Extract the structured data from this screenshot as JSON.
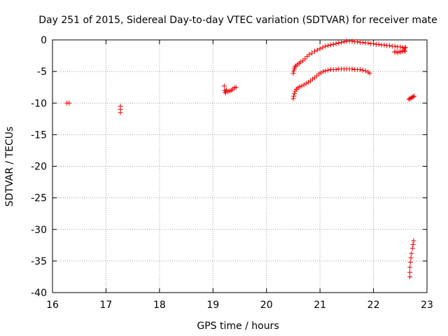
{
  "chart_data": {
    "type": "scatter",
    "title": "Day 251 of 2015, Sidereal Day-to-day VTEC variation (SDTVAR) for receiver mate",
    "xlabel": "GPS time / hours",
    "ylabel": "SDTVAR / TECUs",
    "xlim": [
      16,
      23
    ],
    "ylim": [
      -40,
      0
    ],
    "xticks": [
      16,
      17,
      18,
      19,
      20,
      21,
      22,
      23
    ],
    "yticks": [
      0,
      -5,
      -10,
      -15,
      -20,
      -25,
      -30,
      -35,
      -40
    ],
    "grid": true,
    "marker": "plus",
    "color": "#ee0000",
    "series": [
      {
        "name": "SDTVAR",
        "points": [
          [
            16.27,
            -10.0
          ],
          [
            16.31,
            -10.0
          ],
          [
            17.27,
            -10.5
          ],
          [
            17.27,
            -11.0
          ],
          [
            17.27,
            -11.5
          ],
          [
            19.21,
            -7.3
          ],
          [
            19.22,
            -8.0
          ],
          [
            19.23,
            -8.4
          ],
          [
            19.24,
            -8.2
          ],
          [
            19.25,
            -7.9
          ],
          [
            19.28,
            -8.2
          ],
          [
            19.31,
            -8.1
          ],
          [
            19.34,
            -8.0
          ],
          [
            19.37,
            -7.8
          ],
          [
            19.4,
            -7.6
          ],
          [
            19.43,
            -7.5
          ],
          [
            20.5,
            -5.3
          ],
          [
            20.51,
            -4.9
          ],
          [
            20.52,
            -4.6
          ],
          [
            20.53,
            -4.3
          ],
          [
            20.55,
            -4.1
          ],
          [
            20.58,
            -3.9
          ],
          [
            20.61,
            -3.7
          ],
          [
            20.64,
            -3.5
          ],
          [
            20.68,
            -3.3
          ],
          [
            20.72,
            -3.0
          ],
          [
            20.76,
            -2.6
          ],
          [
            20.8,
            -2.3
          ],
          [
            20.85,
            -2.1
          ],
          [
            20.9,
            -1.8
          ],
          [
            20.95,
            -1.6
          ],
          [
            21.0,
            -1.4
          ],
          [
            21.05,
            -1.2
          ],
          [
            21.1,
            -1.0
          ],
          [
            21.15,
            -0.9
          ],
          [
            21.2,
            -0.8
          ],
          [
            21.25,
            -0.7
          ],
          [
            21.3,
            -0.6
          ],
          [
            21.35,
            -0.5
          ],
          [
            21.4,
            -0.4
          ],
          [
            21.45,
            -0.3
          ],
          [
            21.5,
            -0.2
          ],
          [
            21.55,
            -0.2
          ],
          [
            21.6,
            -0.2
          ],
          [
            21.65,
            -0.3
          ],
          [
            21.7,
            -0.3
          ],
          [
            21.75,
            -0.4
          ],
          [
            21.8,
            -0.4
          ],
          [
            21.85,
            -0.5
          ],
          [
            21.9,
            -0.5
          ],
          [
            21.95,
            -0.6
          ],
          [
            22.0,
            -0.6
          ],
          [
            22.05,
            -0.7
          ],
          [
            22.1,
            -0.7
          ],
          [
            22.15,
            -0.8
          ],
          [
            22.2,
            -0.8
          ],
          [
            22.25,
            -0.9
          ],
          [
            22.3,
            -0.9
          ],
          [
            22.35,
            -1.0
          ],
          [
            22.4,
            -1.0
          ],
          [
            22.45,
            -1.1
          ],
          [
            22.5,
            -1.1
          ],
          [
            22.55,
            -1.2
          ],
          [
            22.58,
            -1.3
          ],
          [
            22.6,
            -1.2
          ],
          [
            22.39,
            -1.9
          ],
          [
            22.42,
            -1.9
          ],
          [
            22.45,
            -2.0
          ],
          [
            22.48,
            -1.9
          ],
          [
            22.51,
            -1.9
          ],
          [
            22.54,
            -1.8
          ],
          [
            22.57,
            -1.7
          ],
          [
            22.59,
            -1.8
          ],
          [
            20.5,
            -9.3
          ],
          [
            20.51,
            -8.9
          ],
          [
            20.52,
            -8.5
          ],
          [
            20.54,
            -8.1
          ],
          [
            20.56,
            -7.8
          ],
          [
            20.59,
            -7.6
          ],
          [
            20.62,
            -7.4
          ],
          [
            20.66,
            -7.3
          ],
          [
            20.7,
            -7.1
          ],
          [
            20.74,
            -6.9
          ],
          [
            20.78,
            -6.7
          ],
          [
            20.82,
            -6.5
          ],
          [
            20.86,
            -6.2
          ],
          [
            20.9,
            -6.0
          ],
          [
            20.94,
            -5.7
          ],
          [
            20.98,
            -5.4
          ],
          [
            21.02,
            -5.2
          ],
          [
            21.06,
            -5.0
          ],
          [
            21.1,
            -4.9
          ],
          [
            21.15,
            -4.8
          ],
          [
            21.2,
            -4.7
          ],
          [
            21.25,
            -4.7
          ],
          [
            21.3,
            -4.7
          ],
          [
            21.35,
            -4.6
          ],
          [
            21.4,
            -4.6
          ],
          [
            21.45,
            -4.6
          ],
          [
            21.5,
            -4.6
          ],
          [
            21.55,
            -4.6
          ],
          [
            21.6,
            -4.6
          ],
          [
            21.65,
            -4.7
          ],
          [
            21.7,
            -4.7
          ],
          [
            21.75,
            -4.7
          ],
          [
            21.8,
            -4.8
          ],
          [
            21.85,
            -4.9
          ],
          [
            21.9,
            -5.1
          ],
          [
            21.93,
            -5.3
          ],
          [
            22.66,
            -9.4
          ],
          [
            22.68,
            -9.3
          ],
          [
            22.7,
            -9.2
          ],
          [
            22.72,
            -9.1
          ],
          [
            22.74,
            -9.0
          ],
          [
            22.76,
            -8.9
          ],
          [
            22.68,
            -37.5
          ],
          [
            22.68,
            -36.8
          ],
          [
            22.68,
            -36.0
          ],
          [
            22.69,
            -35.2
          ],
          [
            22.7,
            -34.5
          ],
          [
            22.71,
            -33.8
          ],
          [
            22.73,
            -33.0
          ],
          [
            22.74,
            -32.4
          ],
          [
            22.75,
            -31.8
          ]
        ]
      }
    ]
  }
}
